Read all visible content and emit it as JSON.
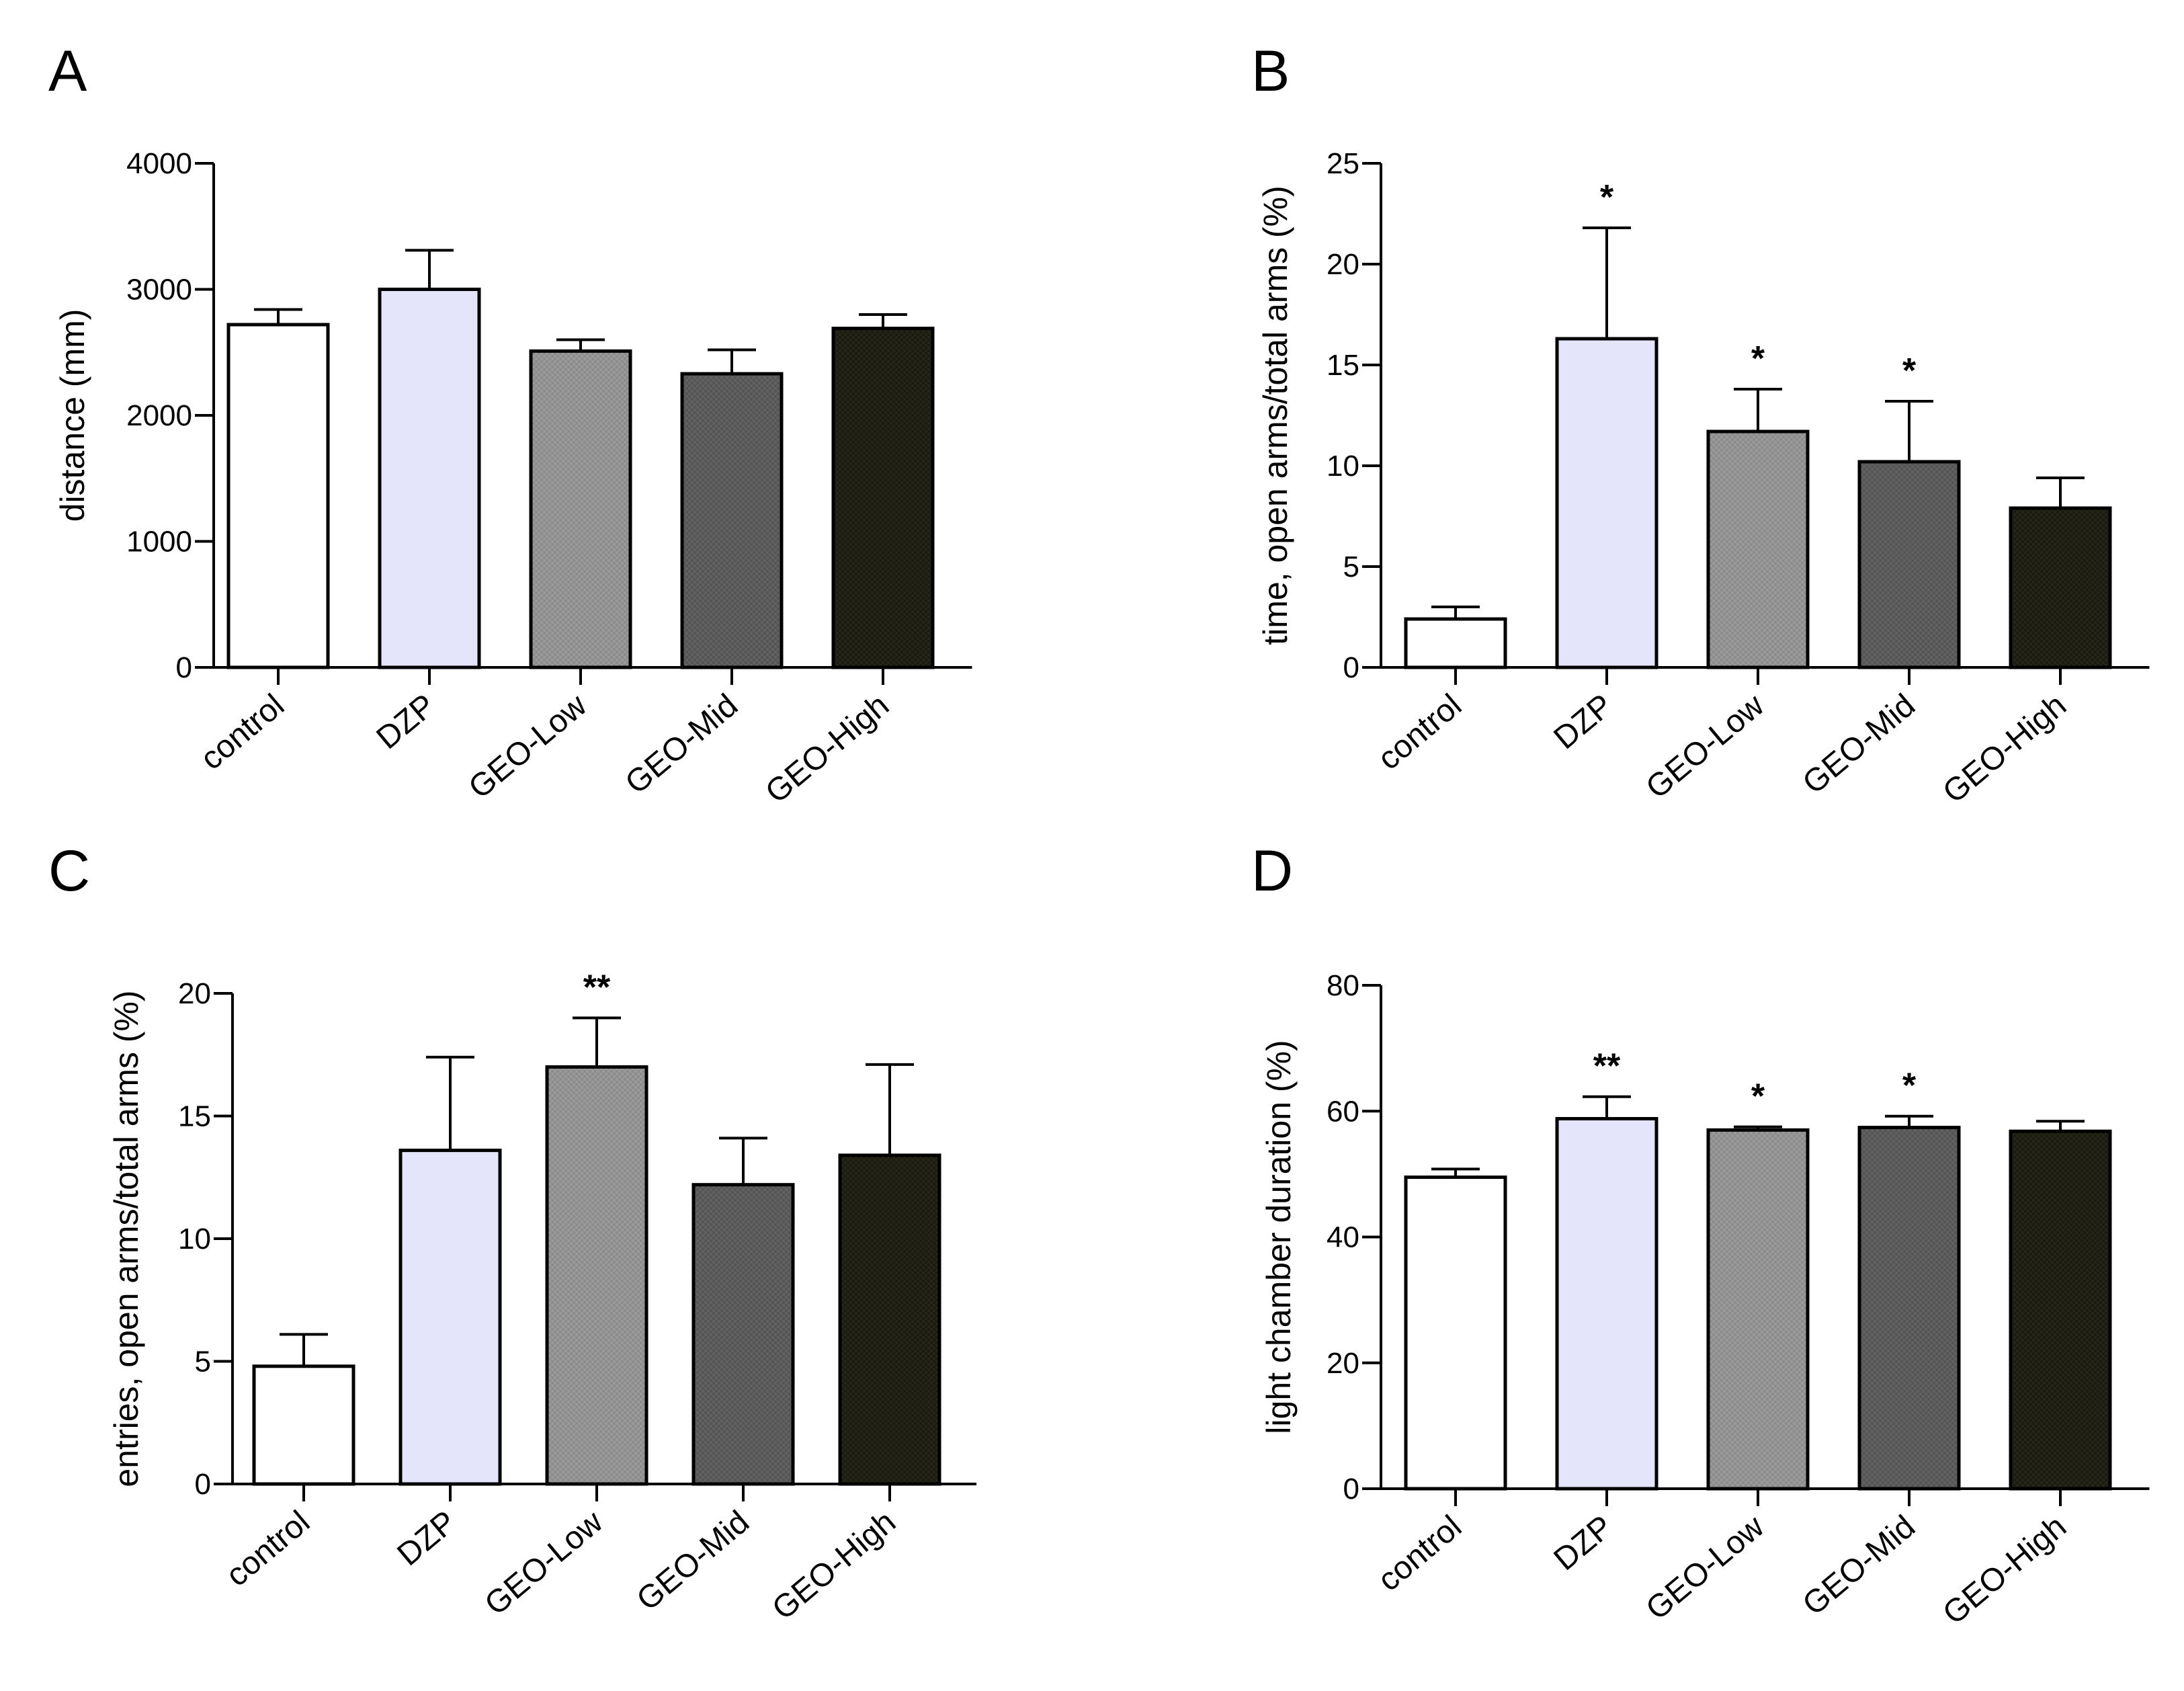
{
  "chart_data": [
    {
      "type": "bar",
      "panel": "A",
      "title": "",
      "xlabel": "",
      "ylabel": "distance (mm)",
      "ylim": [
        0,
        4000
      ],
      "yticks": [
        0,
        1000,
        2000,
        3000,
        4000
      ],
      "categories": [
        "control",
        "DZP",
        "GEO-Low",
        "GEO-Mid",
        "GEO-High"
      ],
      "values": [
        2720,
        3000,
        2510,
        2330,
        2690
      ],
      "errors": [
        120,
        310,
        90,
        190,
        110
      ],
      "significance": [
        "",
        "",
        "",
        "",
        ""
      ]
    },
    {
      "type": "bar",
      "panel": "B",
      "title": "",
      "xlabel": "",
      "ylabel": "time, open arms/total arms (%)",
      "ylim": [
        0,
        25
      ],
      "yticks": [
        0,
        5,
        10,
        15,
        20,
        25
      ],
      "categories": [
        "control",
        "DZP",
        "GEO-Low",
        "GEO-Mid",
        "GEO-High"
      ],
      "values": [
        2.4,
        16.3,
        11.7,
        10.2,
        7.9
      ],
      "errors": [
        0.6,
        5.5,
        2.1,
        3.0,
        1.5
      ],
      "significance": [
        "",
        "*",
        "*",
        "*",
        ""
      ]
    },
    {
      "type": "bar",
      "panel": "C",
      "title": "",
      "xlabel": "",
      "ylabel": "entries, open arms/total arms (%)",
      "ylim": [
        0,
        20
      ],
      "yticks": [
        0,
        5,
        10,
        15,
        20
      ],
      "categories": [
        "control",
        "DZP",
        "GEO-Low",
        "GEO-Mid",
        "GEO-High"
      ],
      "values": [
        4.8,
        13.6,
        17.0,
        12.2,
        13.4
      ],
      "errors": [
        1.3,
        3.8,
        2.0,
        1.9,
        3.7
      ],
      "significance": [
        "",
        "",
        "**",
        "",
        ""
      ]
    },
    {
      "type": "bar",
      "panel": "D",
      "title": "",
      "xlabel": "",
      "ylabel": "light chamber duration (%)",
      "ylim": [
        0,
        80
      ],
      "yticks": [
        0,
        20,
        40,
        60,
        80
      ],
      "categories": [
        "control",
        "DZP",
        "GEO-Low",
        "GEO-Mid",
        "GEO-High"
      ],
      "values": [
        49.5,
        58.8,
        57.0,
        57.4,
        56.8
      ],
      "errors": [
        1.3,
        3.5,
        0.5,
        1.8,
        1.6
      ],
      "significance": [
        "",
        "**",
        "*",
        "*",
        ""
      ]
    }
  ],
  "colors": {
    "control": "#ffffff",
    "DZP": "#e4e4fa",
    "GEO-Low": "#8c8c8c",
    "GEO-Mid": "#585858",
    "GEO-High": "#1b1b0f",
    "stroke": "#000000"
  }
}
